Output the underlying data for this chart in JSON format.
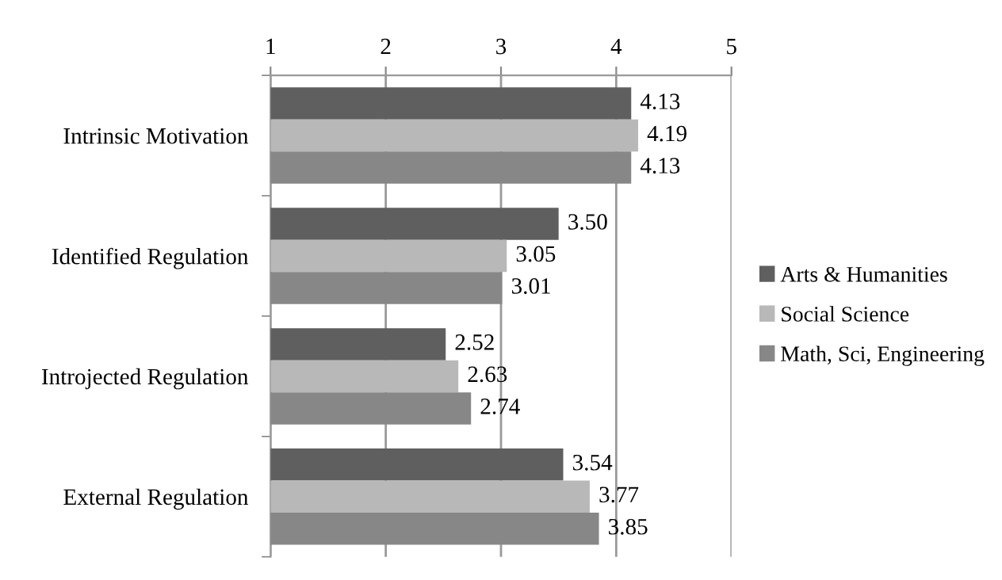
{
  "chart_data": {
    "type": "bar",
    "orientation": "horizontal",
    "categories": [
      "Intrinsic Motivation",
      "Identified Regulation",
      "Introjected Regulation",
      "External Regulation"
    ],
    "series": [
      {
        "name": "Arts & Humanities",
        "color": "#5f5f5f",
        "values": [
          4.13,
          3.5,
          2.52,
          3.54
        ],
        "value_labels": [
          "4.13",
          "3.50",
          "2.52",
          "3.54"
        ]
      },
      {
        "name": "Social Science",
        "color": "#b8b8b8",
        "values": [
          4.19,
          3.05,
          2.63,
          3.77
        ],
        "value_labels": [
          "4.19",
          "3.05",
          "2.63",
          "3.77"
        ]
      },
      {
        "name": "Math, Sci, Engineering",
        "color": "#878787",
        "values": [
          4.13,
          3.01,
          2.74,
          3.85
        ],
        "value_labels": [
          "4.13",
          "3.01",
          "2.74",
          "3.85"
        ]
      }
    ],
    "xlim": [
      1,
      5
    ],
    "xticks": [
      1,
      2,
      3,
      4,
      5
    ],
    "grid": "x",
    "legend": "right"
  }
}
